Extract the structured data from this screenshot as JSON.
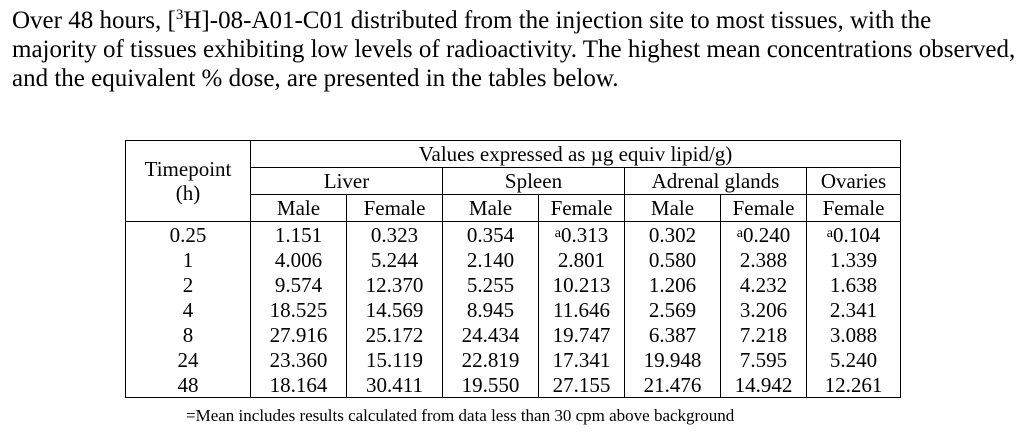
{
  "paragraph": {
    "part1": "Over 48 hours, [",
    "superscript": "3",
    "part2": "H]-08-A01-C01 distributed from the injection site to most tissues, with the majority of tissues exhibiting low levels of radioactivity.  The highest mean concentrations observed, and the equivalent % dose, are presented in the tables below."
  },
  "table": {
    "timepoint_header": [
      "Timepoint",
      "(h)"
    ],
    "values_header": "Values expressed as µg equiv lipid/g)",
    "tissues": [
      "Liver",
      "Spleen",
      "Adrenal glands",
      "Ovaries"
    ],
    "sexes": [
      "Male",
      "Female",
      "Male",
      "Female",
      "Male",
      "Female",
      "Female"
    ],
    "footnote_mark": "a",
    "rows": [
      {
        "timepoint": "0.25",
        "cells": [
          {
            "value": "1.151",
            "flag": ""
          },
          {
            "value": "0.323",
            "flag": ""
          },
          {
            "value": "0.354",
            "flag": ""
          },
          {
            "value": "0.313",
            "flag": "a"
          },
          {
            "value": "0.302",
            "flag": ""
          },
          {
            "value": "0.240",
            "flag": "a"
          },
          {
            "value": "0.104",
            "flag": "a"
          }
        ]
      },
      {
        "timepoint": "1",
        "cells": [
          {
            "value": "4.006",
            "flag": ""
          },
          {
            "value": "5.244",
            "flag": ""
          },
          {
            "value": "2.140",
            "flag": ""
          },
          {
            "value": "2.801",
            "flag": ""
          },
          {
            "value": "0.580",
            "flag": ""
          },
          {
            "value": "2.388",
            "flag": ""
          },
          {
            "value": "1.339",
            "flag": ""
          }
        ]
      },
      {
        "timepoint": "2",
        "cells": [
          {
            "value": "9.574",
            "flag": ""
          },
          {
            "value": "12.370",
            "flag": ""
          },
          {
            "value": "5.255",
            "flag": ""
          },
          {
            "value": "10.213",
            "flag": ""
          },
          {
            "value": "1.206",
            "flag": ""
          },
          {
            "value": "4.232",
            "flag": ""
          },
          {
            "value": "1.638",
            "flag": ""
          }
        ]
      },
      {
        "timepoint": "4",
        "cells": [
          {
            "value": "18.525",
            "flag": ""
          },
          {
            "value": "14.569",
            "flag": ""
          },
          {
            "value": "8.945",
            "flag": ""
          },
          {
            "value": "11.646",
            "flag": ""
          },
          {
            "value": "2.569",
            "flag": ""
          },
          {
            "value": "3.206",
            "flag": ""
          },
          {
            "value": "2.341",
            "flag": ""
          }
        ]
      },
      {
        "timepoint": "8",
        "cells": [
          {
            "value": "27.916",
            "flag": ""
          },
          {
            "value": "25.172",
            "flag": ""
          },
          {
            "value": "24.434",
            "flag": ""
          },
          {
            "value": "19.747",
            "flag": ""
          },
          {
            "value": "6.387",
            "flag": ""
          },
          {
            "value": "7.218",
            "flag": ""
          },
          {
            "value": "3.088",
            "flag": ""
          }
        ]
      },
      {
        "timepoint": "24",
        "cells": [
          {
            "value": "23.360",
            "flag": ""
          },
          {
            "value": "15.119",
            "flag": ""
          },
          {
            "value": "22.819",
            "flag": ""
          },
          {
            "value": "17.341",
            "flag": ""
          },
          {
            "value": "19.948",
            "flag": ""
          },
          {
            "value": "7.595",
            "flag": ""
          },
          {
            "value": "5.240",
            "flag": ""
          }
        ]
      },
      {
        "timepoint": "48",
        "cells": [
          {
            "value": "18.164",
            "flag": ""
          },
          {
            "value": "30.411",
            "flag": ""
          },
          {
            "value": "19.550",
            "flag": ""
          },
          {
            "value": "27.155",
            "flag": ""
          },
          {
            "value": "21.476",
            "flag": ""
          },
          {
            "value": "14.942",
            "flag": ""
          },
          {
            "value": "12.261",
            "flag": ""
          }
        ]
      }
    ]
  },
  "footnote": {
    "mark": "a",
    "text": "=Mean includes results calculated from data less than 30 cpm above background"
  }
}
